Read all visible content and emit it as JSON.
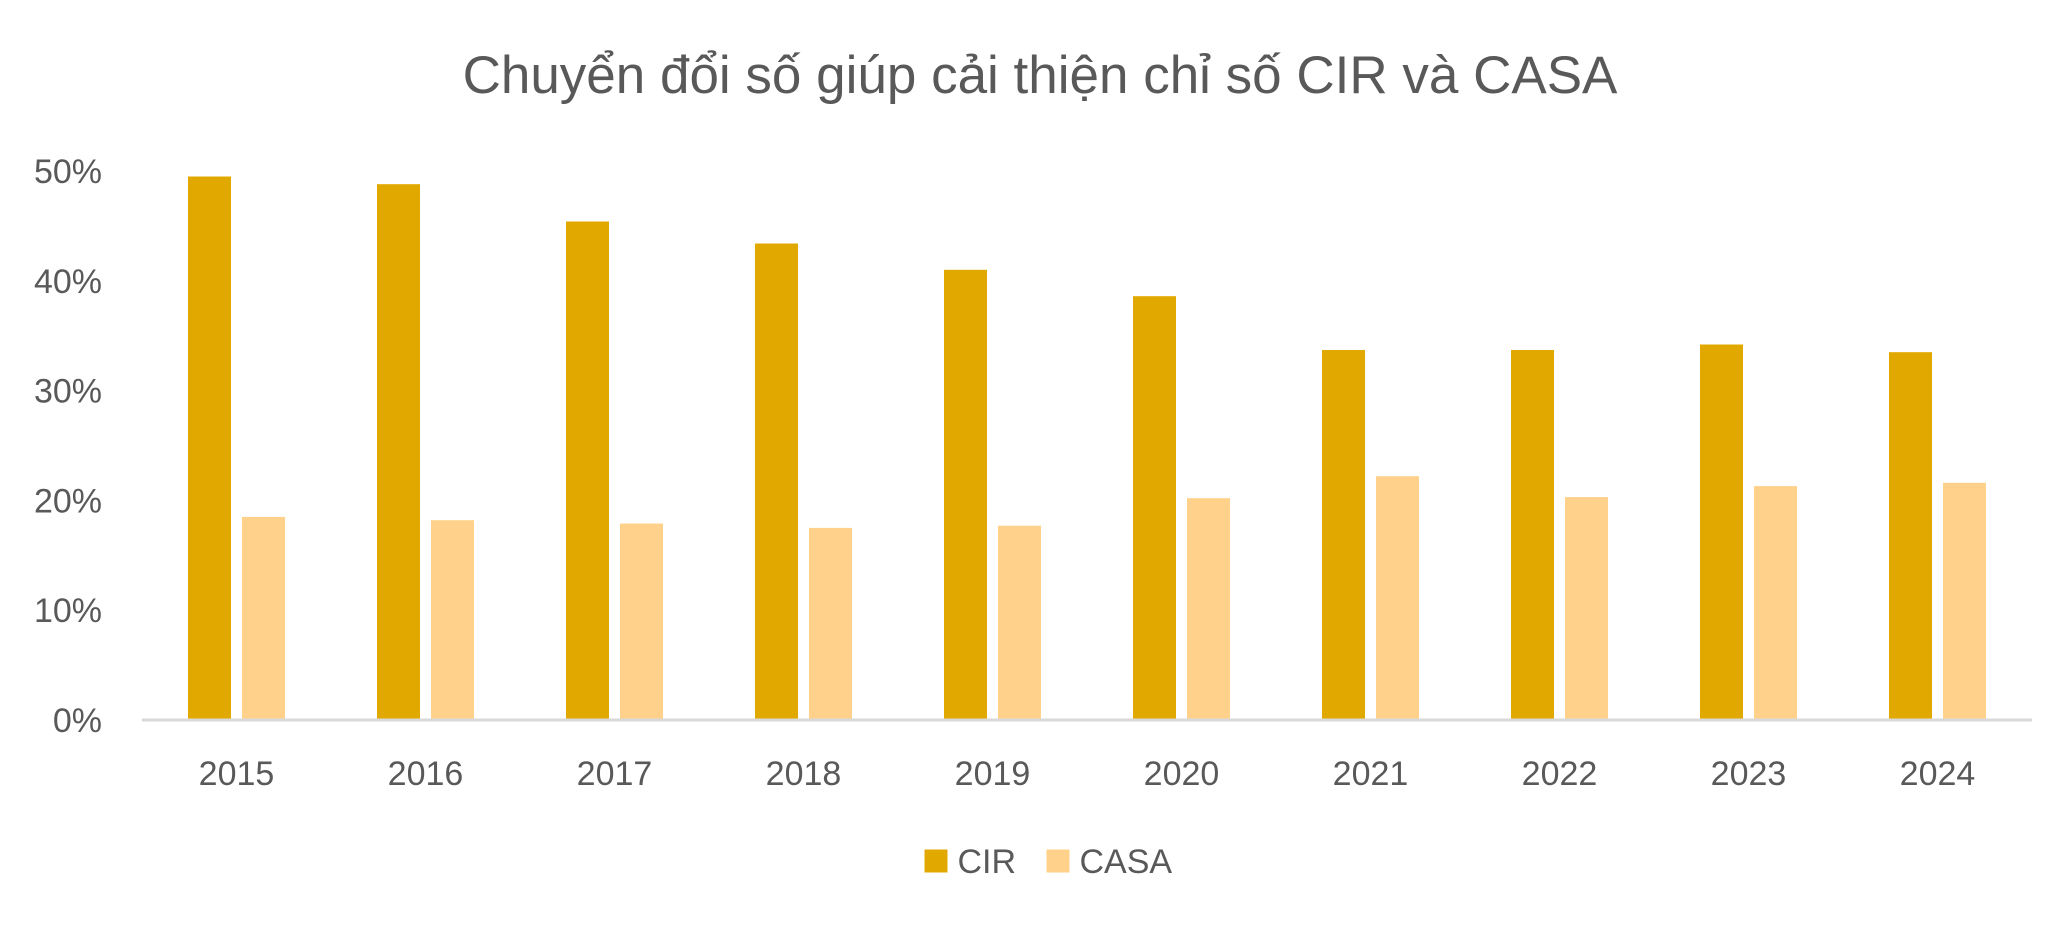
{
  "chart_data": {
    "type": "bar",
    "title": "Chuyển đổi số giúp cải thiện chỉ số CIR và CASA",
    "xlabel": "",
    "ylabel": "",
    "categories": [
      "2015",
      "2016",
      "2017",
      "2018",
      "2019",
      "2020",
      "2021",
      "2022",
      "2023",
      "2024"
    ],
    "series": [
      {
        "name": "CIR",
        "color": "#E1A800",
        "values": [
          49.5,
          48.8,
          45.4,
          43.4,
          41.0,
          38.6,
          33.7,
          33.7,
          34.2,
          33.5
        ]
      },
      {
        "name": "CASA",
        "color": "#FFD18A",
        "values": [
          18.5,
          18.2,
          17.9,
          17.5,
          17.7,
          20.2,
          22.2,
          20.3,
          21.3,
          21.6
        ]
      }
    ],
    "ylim": [
      0,
      50
    ],
    "yticks": [
      "0%",
      "10%",
      "20%",
      "30%",
      "40%",
      "50%"
    ],
    "ytick_values": [
      0,
      10,
      20,
      30,
      40,
      50
    ],
    "grid": false,
    "legend_position": "bottom"
  }
}
